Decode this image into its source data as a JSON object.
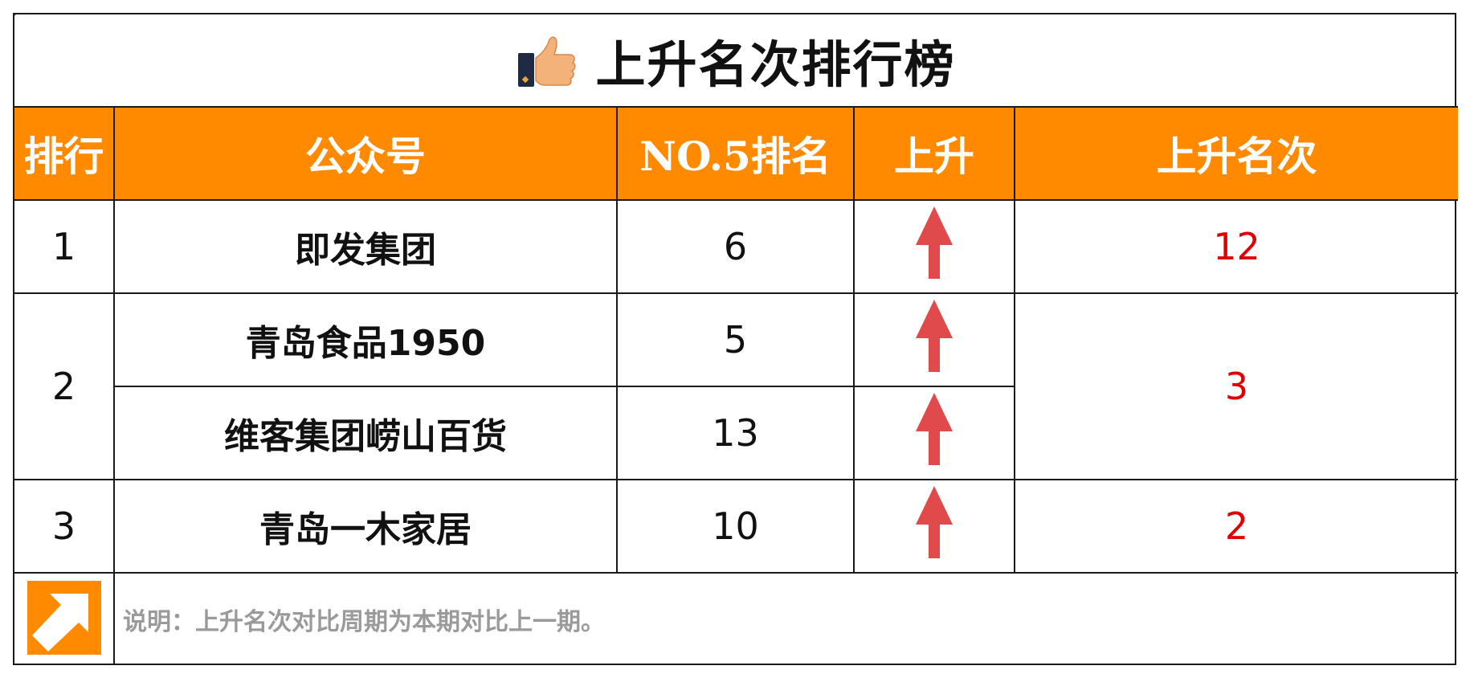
{
  "title": "上升名次排行榜",
  "icons": {
    "title_icon": "thumbs-up-icon",
    "note_icon": "arrow-up-right-icon",
    "rise_icon": "red-up-arrow-icon"
  },
  "colors": {
    "header_bg": "#ff8a00",
    "header_text": "#ffffff",
    "arrow": "#e04a4a",
    "rise_value": "#e00000",
    "note_text": "#9a9a9a",
    "note_icon_bg": "#ff8a00"
  },
  "headers": [
    "排行",
    "公众号",
    "NO.5排名",
    "上升",
    "上升名次"
  ],
  "rows": [
    {
      "rank": "1",
      "accounts": [
        {
          "name": "即发集团",
          "no5_rank": "6"
        }
      ],
      "rise": "12"
    },
    {
      "rank": "2",
      "accounts": [
        {
          "name": "青岛食品1950",
          "no5_rank": "5"
        },
        {
          "name": "维客集团崂山百货",
          "no5_rank": "13"
        }
      ],
      "rise": "3"
    },
    {
      "rank": "3",
      "accounts": [
        {
          "name": "青岛一木家居",
          "no5_rank": "10"
        }
      ],
      "rise": "2"
    }
  ],
  "note": "说明：上升名次对比周期为本期对比上一期。"
}
